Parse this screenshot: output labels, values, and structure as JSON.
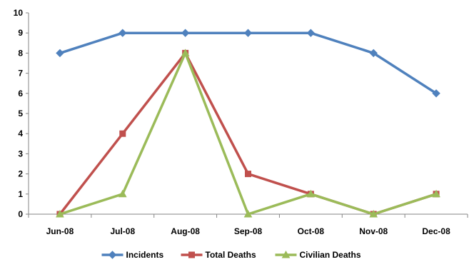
{
  "chart_data": {
    "type": "line",
    "title": "",
    "xlabel": "",
    "ylabel": "",
    "categories": [
      "Jun-08",
      "Jul-08",
      "Aug-08",
      "Sep-08",
      "Oct-08",
      "Nov-08",
      "Dec-08"
    ],
    "ylim": [
      0,
      10
    ],
    "yticks": [
      "0",
      "1",
      "2",
      "3",
      "4",
      "5",
      "6",
      "7",
      "8",
      "9",
      "10"
    ],
    "grid": false,
    "legend_position": "bottom",
    "series": [
      {
        "name": "Incidents",
        "values": [
          8,
          9,
          9,
          9,
          9,
          8,
          6
        ],
        "color": "#4F81BD",
        "marker": "diamond"
      },
      {
        "name": "Total Deaths",
        "values": [
          0,
          4,
          8,
          2,
          1,
          0,
          1
        ],
        "color": "#C0504D",
        "marker": "square"
      },
      {
        "name": "Civilian Deaths",
        "values": [
          0,
          1,
          8,
          0,
          1,
          0,
          1
        ],
        "color": "#9BBB59",
        "marker": "triangle"
      }
    ]
  }
}
